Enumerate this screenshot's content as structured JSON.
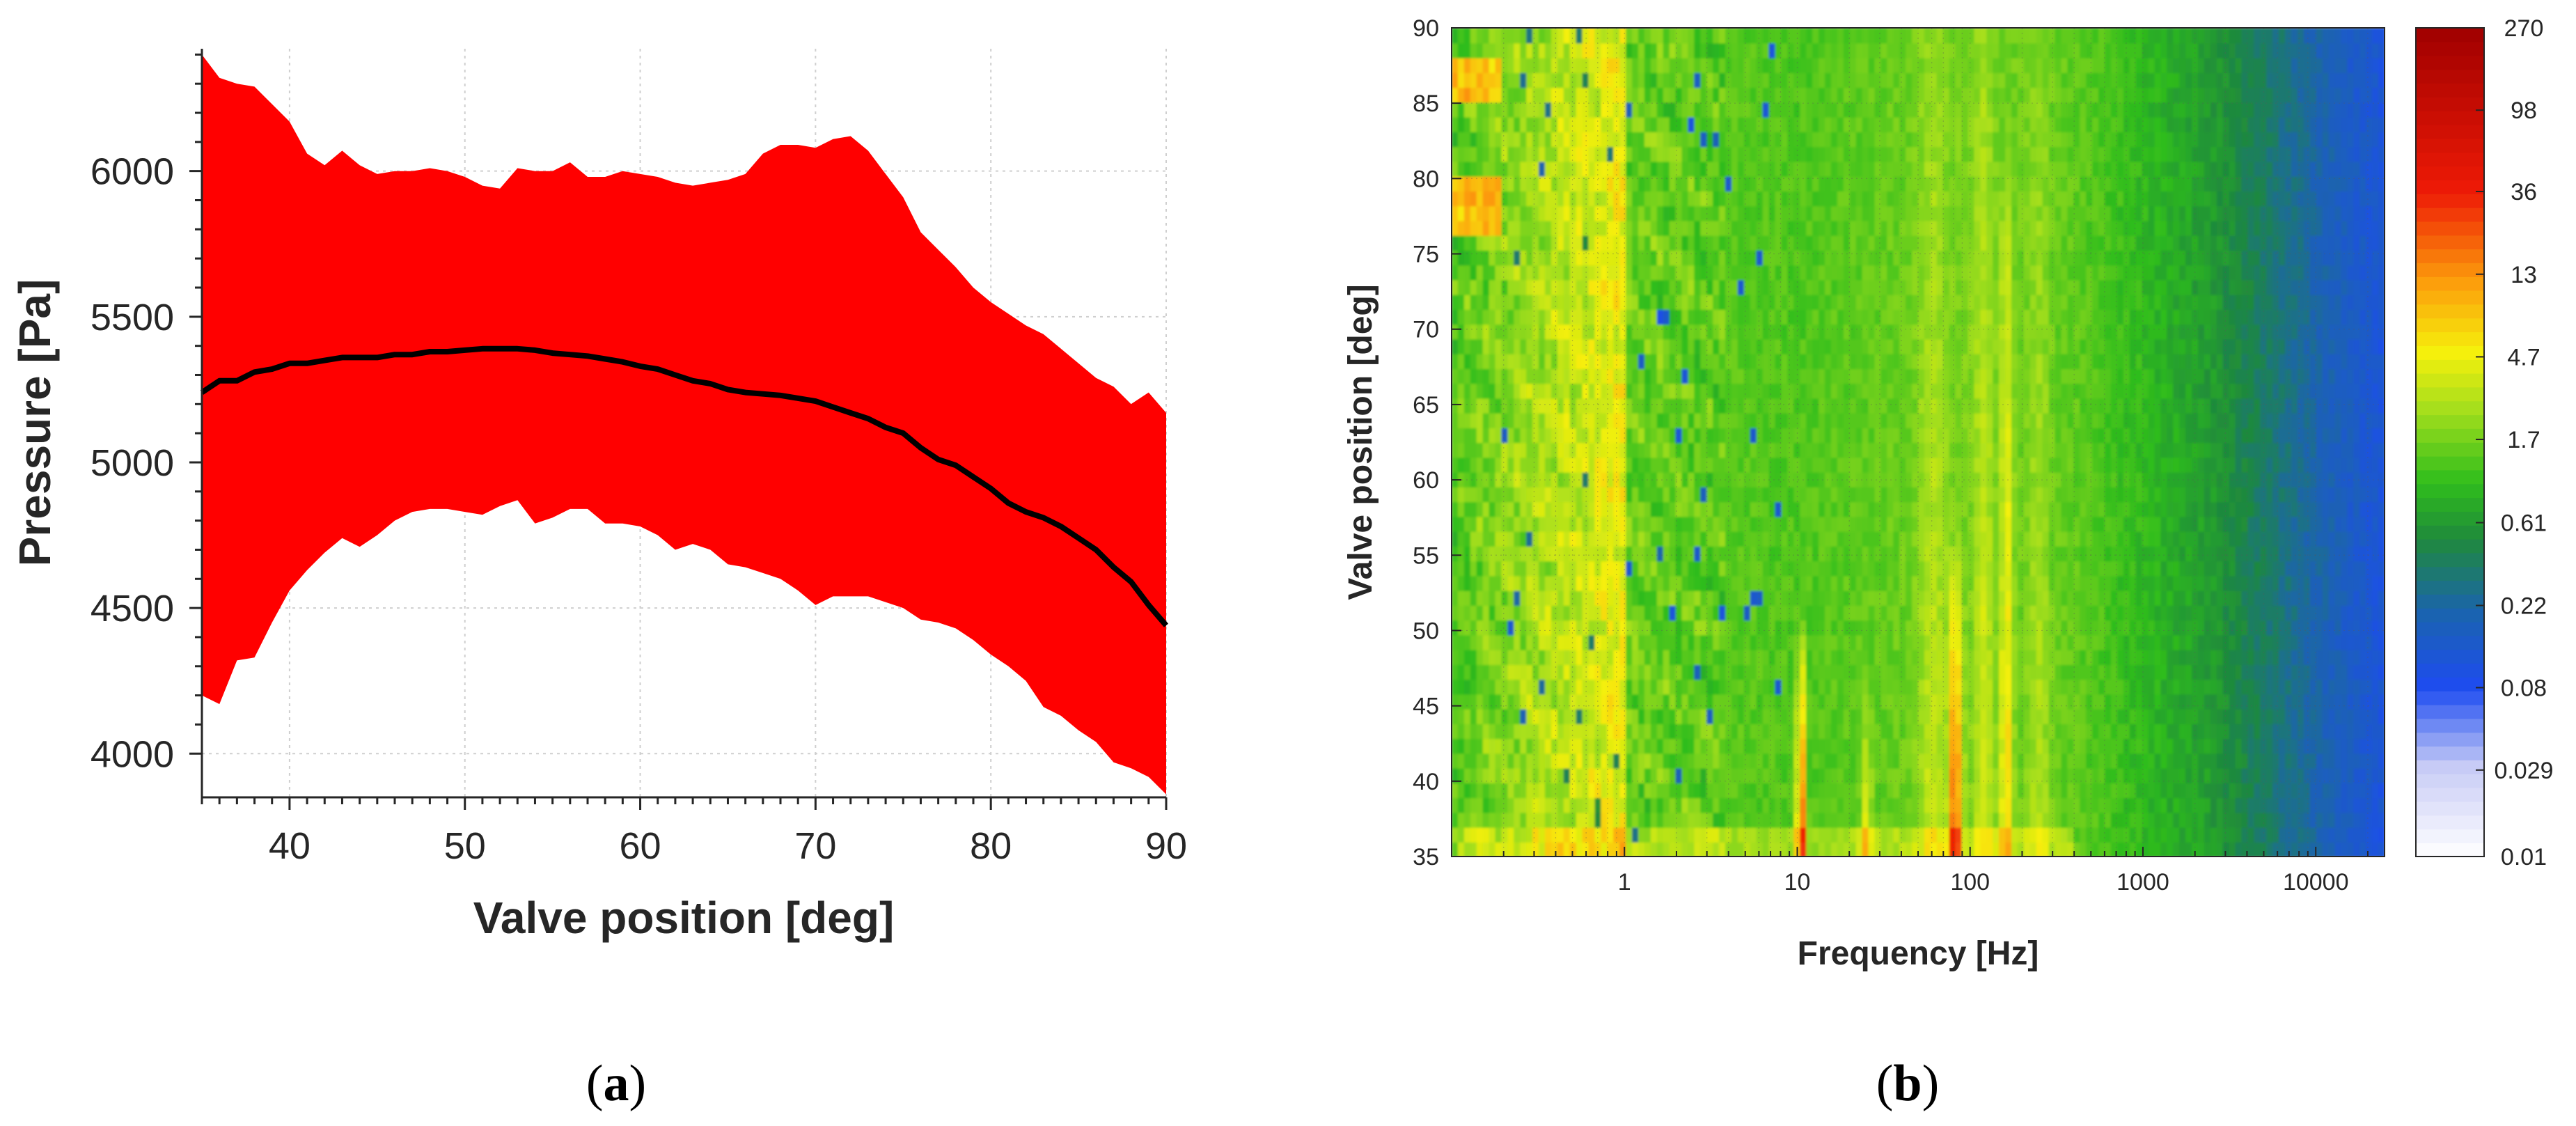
{
  "chart_data": [
    {
      "id": "a",
      "type": "area",
      "caption": "a",
      "title": "",
      "xlabel": "Valve position [deg]",
      "ylabel": "Pressure [Pa]",
      "xlim": [
        35,
        90
      ],
      "ylim": [
        3850,
        6420
      ],
      "xticks": [
        40,
        50,
        60,
        70,
        80,
        90
      ],
      "yticks": [
        4000,
        4500,
        5000,
        5500,
        6000
      ],
      "grid": true,
      "band_color": "#ff0000",
      "line_color": "#000000",
      "series": [
        {
          "name": "upper",
          "x": [
            35,
            36,
            37,
            38,
            39,
            40,
            41,
            42,
            43,
            44,
            45,
            46,
            47,
            48,
            49,
            50,
            51,
            52,
            53,
            54,
            55,
            56,
            57,
            58,
            59,
            60,
            61,
            62,
            63,
            64,
            65,
            66,
            67,
            68,
            69,
            70,
            71,
            72,
            73,
            74,
            75,
            76,
            77,
            78,
            79,
            80,
            81,
            82,
            83,
            84,
            85,
            86,
            87,
            88,
            89,
            90
          ],
          "values": [
            6400,
            6320,
            6300,
            6290,
            6230,
            6170,
            6060,
            6020,
            6070,
            6020,
            5990,
            6000,
            6000,
            6010,
            6000,
            5980,
            5950,
            5940,
            6010,
            6000,
            6000,
            6030,
            5980,
            5980,
            6000,
            5990,
            5980,
            5960,
            5950,
            5960,
            5970,
            5990,
            6060,
            6090,
            6090,
            6080,
            6110,
            6120,
            6070,
            5990,
            5910,
            5790,
            5730,
            5670,
            5600,
            5550,
            5510,
            5470,
            5440,
            5390,
            5340,
            5290,
            5260,
            5200,
            5240,
            5170
          ]
        },
        {
          "name": "mean",
          "x": [
            35,
            36,
            37,
            38,
            39,
            40,
            41,
            42,
            43,
            44,
            45,
            46,
            47,
            48,
            49,
            50,
            51,
            52,
            53,
            54,
            55,
            56,
            57,
            58,
            59,
            60,
            61,
            62,
            63,
            64,
            65,
            66,
            67,
            68,
            69,
            70,
            71,
            72,
            73,
            74,
            75,
            76,
            77,
            78,
            79,
            80,
            81,
            82,
            83,
            84,
            85,
            86,
            87,
            88,
            89,
            90
          ],
          "values": [
            5240,
            5280,
            5280,
            5310,
            5320,
            5340,
            5340,
            5350,
            5360,
            5360,
            5360,
            5370,
            5370,
            5380,
            5380,
            5385,
            5390,
            5390,
            5390,
            5385,
            5375,
            5370,
            5365,
            5355,
            5345,
            5330,
            5320,
            5300,
            5280,
            5270,
            5250,
            5240,
            5235,
            5230,
            5220,
            5210,
            5190,
            5170,
            5150,
            5120,
            5100,
            5050,
            5010,
            4990,
            4950,
            4910,
            4860,
            4830,
            4810,
            4780,
            4740,
            4700,
            4640,
            4590,
            4510,
            4440
          ]
        },
        {
          "name": "lower",
          "x": [
            35,
            36,
            37,
            38,
            39,
            40,
            41,
            42,
            43,
            44,
            45,
            46,
            47,
            48,
            49,
            50,
            51,
            52,
            53,
            54,
            55,
            56,
            57,
            58,
            59,
            60,
            61,
            62,
            63,
            64,
            65,
            66,
            67,
            68,
            69,
            70,
            71,
            72,
            73,
            74,
            75,
            76,
            77,
            78,
            79,
            80,
            81,
            82,
            83,
            84,
            85,
            86,
            87,
            88,
            89,
            90
          ],
          "values": [
            4200,
            4170,
            4320,
            4330,
            4450,
            4560,
            4630,
            4690,
            4740,
            4710,
            4750,
            4800,
            4830,
            4840,
            4840,
            4830,
            4820,
            4850,
            4870,
            4790,
            4810,
            4840,
            4840,
            4790,
            4790,
            4780,
            4750,
            4700,
            4720,
            4700,
            4650,
            4640,
            4620,
            4600,
            4560,
            4510,
            4540,
            4540,
            4540,
            4520,
            4500,
            4460,
            4450,
            4430,
            4390,
            4340,
            4300,
            4250,
            4160,
            4130,
            4080,
            4040,
            3970,
            3950,
            3920,
            3860
          ]
        }
      ]
    },
    {
      "id": "b",
      "type": "heatmap",
      "caption": "b",
      "title": "",
      "xlabel": "Frequency [Hz]",
      "ylabel": "Valve position [deg]",
      "xscale": "log",
      "xlim": [
        0.1,
        25000
      ],
      "ylim": [
        35,
        90
      ],
      "xtick_labels": [
        "1",
        "10",
        "100",
        "1000",
        "10000"
      ],
      "xtick_values": [
        1,
        10,
        100,
        1000,
        10000
      ],
      "ytick_labels": [
        "35",
        "40",
        "45",
        "50",
        "55",
        "60",
        "65",
        "70",
        "75",
        "80",
        "85",
        "90"
      ],
      "ytick_values": [
        35,
        40,
        45,
        50,
        55,
        60,
        65,
        70,
        75,
        80,
        85,
        90
      ],
      "colorbar": {
        "scale": "log",
        "range": [
          0.01,
          270
        ],
        "tick_labels": [
          "270",
          "98",
          "36",
          "13",
          "4.7",
          "1.7",
          "0.61",
          "0.22",
          "0.08",
          "0.029",
          "0.01"
        ],
        "tick_values": [
          270,
          98,
          36,
          13,
          4.7,
          1.7,
          0.61,
          0.22,
          0.08,
          0.029,
          0.01
        ],
        "stops": [
          {
            "v": 0.01,
            "c": "#ffffff"
          },
          {
            "v": 0.03,
            "c": "#c8ccf6"
          },
          {
            "v": 0.08,
            "c": "#1e4cf0"
          },
          {
            "v": 0.2,
            "c": "#1a63b0"
          },
          {
            "v": 0.5,
            "c": "#1f8a3c"
          },
          {
            "v": 1.0,
            "c": "#2fbd1c"
          },
          {
            "v": 2.5,
            "c": "#a6df1c"
          },
          {
            "v": 5,
            "c": "#f6f00c"
          },
          {
            "v": 12,
            "c": "#fc9c0c"
          },
          {
            "v": 36,
            "c": "#ee1a06"
          },
          {
            "v": 270,
            "c": "#a00000"
          }
        ]
      }
    }
  ]
}
